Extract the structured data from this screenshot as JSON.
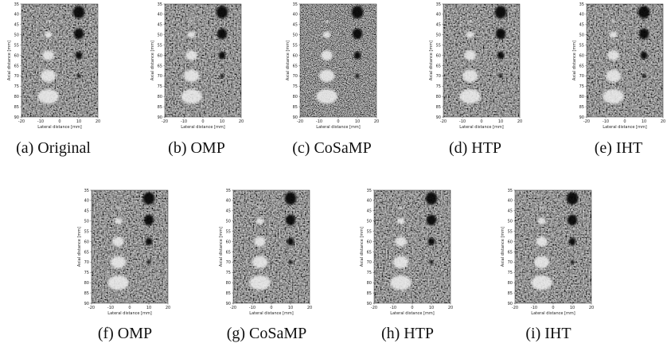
{
  "axes": {
    "x_label": "Lateral distance [mm]",
    "y_label": "Axial distance [mm]",
    "xticks": [
      -20,
      -10,
      0,
      10,
      20
    ],
    "yticks": [
      35,
      40,
      45,
      50,
      55,
      60,
      65,
      70,
      75,
      80,
      85,
      90
    ]
  },
  "panels": [
    {
      "caption": "(a) Original"
    },
    {
      "caption": "(b) OMP"
    },
    {
      "caption": "(c) CoSaMP"
    },
    {
      "caption": "(d) HTP"
    },
    {
      "caption": "(e) IHT"
    },
    {
      "caption": "(f) OMP"
    },
    {
      "caption": "(g) CoSaMP"
    },
    {
      "caption": "(h) HTP"
    },
    {
      "caption": "(i) IHT"
    }
  ]
}
